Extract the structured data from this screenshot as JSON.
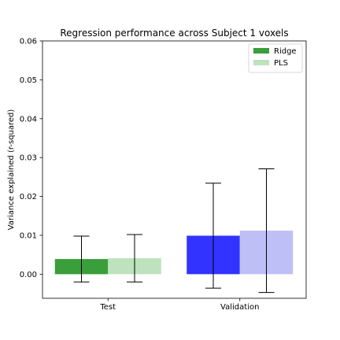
{
  "chart_data": {
    "type": "bar",
    "title": "Regression performance across Subject 1 voxels",
    "xlabel": "",
    "ylabel": "Variance explained (r-squared)",
    "ylim": [
      -0.0062,
      0.06
    ],
    "yticks": [
      "0.00",
      "0.01",
      "0.02",
      "0.03",
      "0.04",
      "0.05",
      "0.06"
    ],
    "categories": [
      "Test",
      "Validation"
    ],
    "series": [
      {
        "name": "Ridge",
        "legend_color": "#3a9e3a",
        "values": [
          0.0039,
          0.0099
        ],
        "errors": [
          0.0059,
          0.0135
        ],
        "colors": [
          "#3a9e3a",
          "#3333ff"
        ]
      },
      {
        "name": "PLS",
        "legend_color": "#bde2bd",
        "values": [
          0.0041,
          0.0112
        ],
        "errors": [
          0.0061,
          0.0159
        ],
        "colors": [
          "#bde2bd",
          "#bfbff7"
        ]
      }
    ],
    "grid": false,
    "legend_position": "top-right"
  }
}
